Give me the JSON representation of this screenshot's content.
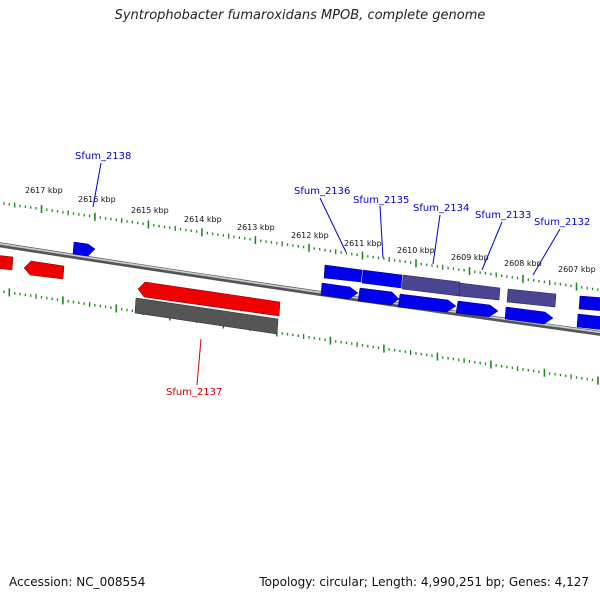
{
  "title": "Syntrophobacter fumaroxidans MPOB, complete genome",
  "footer": {
    "accession": "Accession: NC_008554",
    "summary": "Topology: circular; Length: 4,990,251 bp; Genes: 4,127"
  },
  "colors": {
    "forward_gene": "#0000ee",
    "reverse_gene": "#ee0000",
    "pseudo_forward": "#4a4590",
    "pseudo_reverse": "#555555",
    "tick": "#1a8a1a",
    "label_blue": "#0000cc",
    "label_red": "#cc0000"
  },
  "ticks": [
    {
      "label": "2617 kbp"
    },
    {
      "label": "2616 kbp"
    },
    {
      "label": "2615 kbp"
    },
    {
      "label": "2614 kbp"
    },
    {
      "label": "2613 kbp"
    },
    {
      "label": "2612 kbp"
    },
    {
      "label": "2611 kbp"
    },
    {
      "label": "2610 kbp"
    },
    {
      "label": "2609 kbp"
    },
    {
      "label": "2608 kbp"
    },
    {
      "label": "2607 kbp"
    }
  ],
  "gene_labels": [
    {
      "text": "Sfum_2138",
      "strand": "forward"
    },
    {
      "text": "Sfum_2136",
      "strand": "forward"
    },
    {
      "text": "Sfum_2135",
      "strand": "forward"
    },
    {
      "text": "Sfum_2134",
      "strand": "forward"
    },
    {
      "text": "Sfum_2133",
      "strand": "forward"
    },
    {
      "text": "Sfum_2132",
      "strand": "forward"
    },
    {
      "text": "Sfum_2137",
      "strand": "reverse"
    }
  ]
}
